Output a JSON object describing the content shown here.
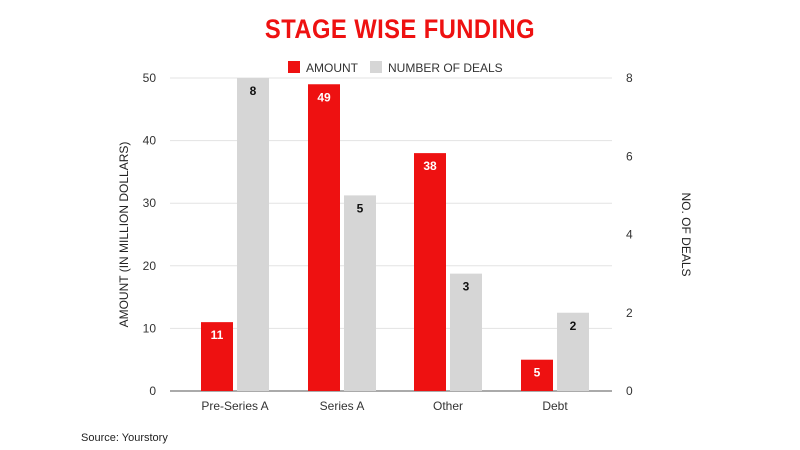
{
  "colors": {
    "title": "#ee1111",
    "amount": "#ee1111",
    "deals": "#d6d6d6",
    "grid": "#e3e3e3"
  },
  "source": "Source: Yourstory",
  "chart_data": {
    "type": "bar",
    "title": "STAGE WISE FUNDING",
    "categories": [
      "Pre-Series A",
      "Series A",
      "Other",
      "Debt"
    ],
    "series": [
      {
        "name": "AMOUNT",
        "axis": "left",
        "color": "#ee1111",
        "values": [
          11,
          49,
          38,
          5
        ]
      },
      {
        "name": "NUMBER OF DEALS",
        "axis": "right",
        "color": "#d6d6d6",
        "values": [
          8,
          5,
          3,
          2
        ]
      }
    ],
    "ylabel": "AMOUNT (IN MILLION DOLLARS)",
    "y2label": "NO. OF DEALS",
    "ylim": [
      0,
      50
    ],
    "y2lim": [
      0,
      8
    ],
    "yticks": [
      0,
      10,
      20,
      30,
      40,
      50
    ],
    "y2ticks": [
      0,
      2,
      4,
      6,
      8
    ],
    "legend_position": "top",
    "grid": true
  }
}
